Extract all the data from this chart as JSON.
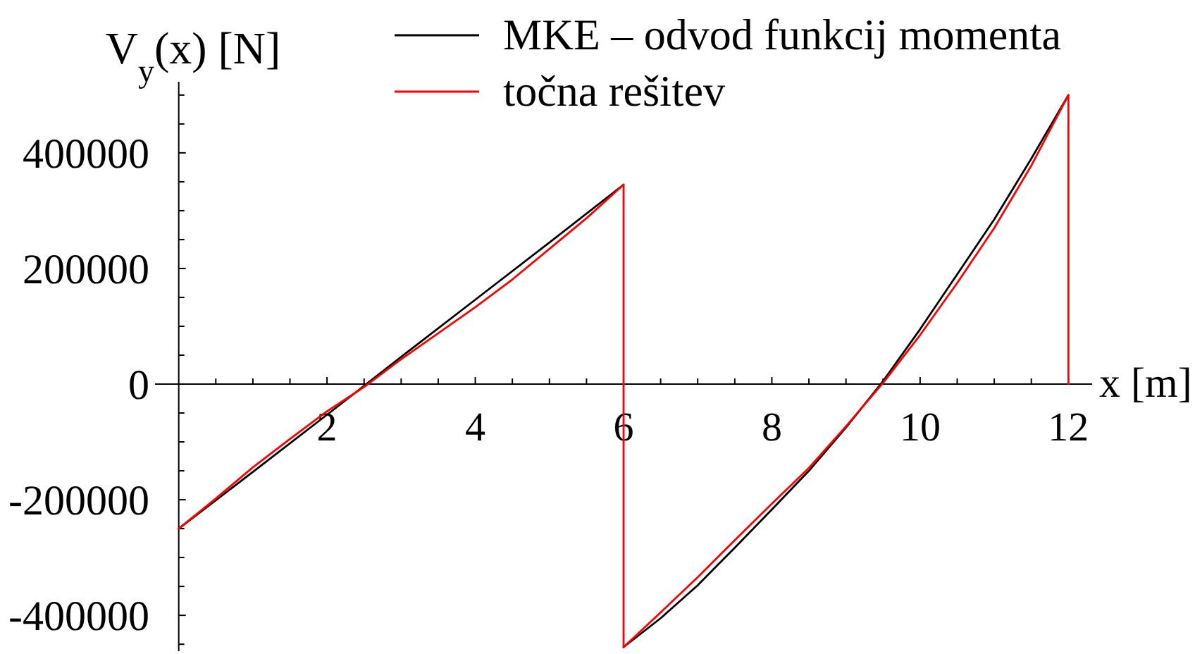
{
  "chart_data": {
    "type": "line",
    "xlabel": "x [m]",
    "ylabel": "V$_{y}$(x) [N]",
    "legend": "top",
    "xlim": [
      -0.32,
      12.32
    ],
    "ylim": [
      -462000,
      523000
    ],
    "xticks": [
      {
        "value": 0.5,
        "label": null
      },
      {
        "value": 1,
        "label": null
      },
      {
        "value": 1.5,
        "label": null
      },
      2,
      {
        "value": 2.5,
        "label": null
      },
      {
        "value": 3,
        "label": null
      },
      {
        "value": 3.5,
        "label": null
      },
      4,
      {
        "value": 4.5,
        "label": null
      },
      {
        "value": 5,
        "label": null
      },
      {
        "value": 5.5,
        "label": null
      },
      6,
      {
        "value": 6.5,
        "label": null
      },
      {
        "value": 7,
        "label": null
      },
      {
        "value": 7.5,
        "label": null
      },
      8,
      {
        "value": 8.5,
        "label": null
      },
      {
        "value": 9,
        "label": null
      },
      {
        "value": 9.5,
        "label": null
      },
      10,
      {
        "value": 10.5,
        "label": null
      },
      {
        "value": 11,
        "label": null
      },
      {
        "value": 11.5,
        "label": null
      },
      12
    ],
    "yticks": [
      {
        "value": -450000,
        "label": null
      },
      -400000,
      {
        "value": -350000,
        "label": null
      },
      {
        "value": -300000,
        "label": null
      },
      {
        "value": -250000,
        "label": null
      },
      -200000,
      {
        "value": -150000,
        "label": null
      },
      {
        "value": -100000,
        "label": null
      },
      {
        "value": -50000,
        "label": null
      },
      0,
      {
        "value": 50000,
        "label": null
      },
      {
        "value": 100000,
        "label": null
      },
      {
        "value": 150000,
        "label": null
      },
      200000,
      {
        "value": 250000,
        "label": null
      },
      {
        "value": 300000,
        "label": null
      },
      {
        "value": 350000,
        "label": null
      },
      400000,
      {
        "value": 450000,
        "label": null
      },
      {
        "value": 500000,
        "label": null
      }
    ],
    "series": [
      {
        "name": "MKE – odvod funkcij momenta",
        "color": "#000000",
        "x": [
          0,
          1,
          2,
          3,
          4,
          5,
          6,
          null,
          6,
          6.5,
          7,
          7.5,
          8,
          8.5,
          9,
          9.5,
          10,
          10.5,
          11,
          11.5,
          12
        ],
        "values": [
          -250000,
          -152000,
          -53000,
          47000,
          146000,
          245000,
          345000,
          null,
          -455000,
          -405000,
          -348000,
          -283000,
          -217000,
          -150000,
          -75000,
          5000,
          95000,
          190000,
          285000,
          390000,
          500000
        ]
      },
      {
        "name": "točna rešitev",
        "color": "#ff0000",
        "x": [
          0,
          0.5,
          1,
          1.5,
          2,
          2.5,
          3,
          3.5,
          4,
          4.5,
          5,
          5.5,
          6,
          6,
          6.5,
          7,
          7.5,
          8,
          8.5,
          9,
          9.5,
          10,
          10.5,
          11,
          11.5,
          12,
          12
        ],
        "values": [
          -250000,
          -198000,
          -144000,
          -95000,
          -47000,
          -5000,
          43000,
          88000,
          133000,
          181000,
          234000,
          287000,
          345000,
          -455000,
          -395000,
          -334000,
          -270000,
          -207000,
          -145000,
          -73000,
          2000,
          85000,
          175000,
          270000,
          378000,
          500000,
          0
        ]
      }
    ]
  }
}
